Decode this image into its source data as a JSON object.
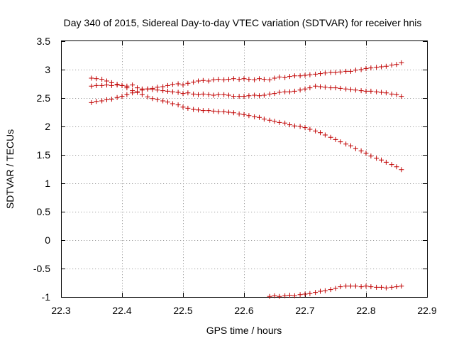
{
  "chart_data": {
    "type": "scatter",
    "title": "Day 340 of 2015, Sidereal Day-to-day VTEC variation (SDTVAR) for receiver hnis",
    "xlabel": "GPS time / hours",
    "ylabel": "SDTVAR / TECUs",
    "xlim": [
      22.3,
      22.9
    ],
    "ylim": [
      -1,
      3.5
    ],
    "xticks": [
      22.3,
      22.4,
      22.5,
      22.6,
      22.7,
      22.8,
      22.9
    ],
    "xtick_labels": [
      "22.3",
      "22.4",
      "22.5",
      "22.6",
      "22.7",
      "22.8",
      "22.9"
    ],
    "yticks": [
      -1,
      -0.5,
      0,
      0.5,
      1,
      1.5,
      2,
      2.5,
      3,
      3.5
    ],
    "ytick_labels": [
      "-1",
      "-0.5",
      "0",
      "0.5",
      "1",
      "1.5",
      "2",
      "2.5",
      "3",
      "3.5"
    ],
    "grid": true,
    "marker": "+",
    "color": "#c00000",
    "series": [
      {
        "name": "series-1",
        "x": [
          22.35,
          22.358,
          22.367,
          22.375,
          22.383,
          22.392,
          22.4,
          22.408,
          22.417,
          22.425,
          22.433,
          22.442,
          22.45,
          22.458,
          22.467,
          22.475,
          22.483,
          22.492,
          22.5,
          22.508,
          22.517,
          22.525,
          22.533,
          22.542,
          22.55,
          22.558,
          22.567,
          22.575,
          22.583,
          22.592,
          22.6,
          22.608,
          22.617,
          22.625,
          22.633,
          22.642,
          22.65,
          22.658,
          22.667,
          22.675,
          22.683,
          22.692,
          22.7,
          22.708,
          22.717,
          22.725,
          22.733,
          22.742,
          22.75,
          22.758,
          22.767,
          22.775,
          22.783,
          22.792,
          22.8,
          22.808,
          22.817,
          22.825,
          22.833,
          22.842,
          22.85,
          22.858
        ],
        "y": [
          2.42,
          2.44,
          2.45,
          2.47,
          2.48,
          2.51,
          2.53,
          2.56,
          2.59,
          2.61,
          2.64,
          2.66,
          2.67,
          2.69,
          2.7,
          2.72,
          2.74,
          2.75,
          2.73,
          2.76,
          2.78,
          2.8,
          2.81,
          2.8,
          2.82,
          2.83,
          2.82,
          2.83,
          2.84,
          2.83,
          2.84,
          2.83,
          2.82,
          2.84,
          2.83,
          2.82,
          2.85,
          2.87,
          2.86,
          2.88,
          2.89,
          2.89,
          2.9,
          2.91,
          2.92,
          2.93,
          2.94,
          2.95,
          2.95,
          2.96,
          2.97,
          2.97,
          2.99,
          3.0,
          3.02,
          3.03,
          3.04,
          3.05,
          3.06,
          3.08,
          3.09,
          3.12
        ]
      },
      {
        "name": "series-2",
        "x": [
          22.35,
          22.358,
          22.367,
          22.375,
          22.383,
          22.392,
          22.4,
          22.408,
          22.417,
          22.425,
          22.433,
          22.442,
          22.45,
          22.458,
          22.467,
          22.475,
          22.483,
          22.492,
          22.5,
          22.508,
          22.517,
          22.525,
          22.533,
          22.542,
          22.55,
          22.558,
          22.567,
          22.575,
          22.583,
          22.592,
          22.6,
          22.608,
          22.617,
          22.625,
          22.633,
          22.642,
          22.65,
          22.658,
          22.667,
          22.675,
          22.683,
          22.692,
          22.7,
          22.708,
          22.717,
          22.725,
          22.733,
          22.742,
          22.75,
          22.758,
          22.767,
          22.775,
          22.783,
          22.792,
          22.8,
          22.808,
          22.817,
          22.825,
          22.833,
          22.842,
          22.85,
          22.858
        ],
        "y": [
          2.71,
          2.72,
          2.72,
          2.73,
          2.72,
          2.73,
          2.72,
          2.71,
          2.73,
          2.68,
          2.66,
          2.66,
          2.65,
          2.64,
          2.63,
          2.62,
          2.61,
          2.6,
          2.58,
          2.59,
          2.57,
          2.56,
          2.57,
          2.56,
          2.55,
          2.56,
          2.56,
          2.55,
          2.53,
          2.53,
          2.53,
          2.54,
          2.55,
          2.54,
          2.55,
          2.57,
          2.58,
          2.6,
          2.61,
          2.61,
          2.62,
          2.64,
          2.66,
          2.68,
          2.71,
          2.7,
          2.69,
          2.68,
          2.68,
          2.67,
          2.66,
          2.65,
          2.64,
          2.63,
          2.62,
          2.62,
          2.61,
          2.6,
          2.59,
          2.57,
          2.56,
          2.53
        ]
      },
      {
        "name": "series-3",
        "x": [
          22.35,
          22.358,
          22.367,
          22.375,
          22.383,
          22.392,
          22.4,
          22.408,
          22.417,
          22.425,
          22.433,
          22.442,
          22.45,
          22.458,
          22.467,
          22.475,
          22.483,
          22.492,
          22.5,
          22.508,
          22.517,
          22.525,
          22.533,
          22.542,
          22.55,
          22.558,
          22.567,
          22.575,
          22.583,
          22.592,
          22.6,
          22.608,
          22.617,
          22.625,
          22.633,
          22.642,
          22.65,
          22.658,
          22.667,
          22.675,
          22.683,
          22.692,
          22.7,
          22.708,
          22.717,
          22.725,
          22.733,
          22.742,
          22.75,
          22.758,
          22.767,
          22.775,
          22.783,
          22.792,
          22.8,
          22.808,
          22.817,
          22.825,
          22.833,
          22.842,
          22.85,
          22.858
        ],
        "y": [
          2.85,
          2.84,
          2.83,
          2.8,
          2.77,
          2.74,
          2.72,
          2.68,
          2.63,
          2.6,
          2.56,
          2.52,
          2.49,
          2.47,
          2.45,
          2.43,
          2.4,
          2.38,
          2.34,
          2.32,
          2.3,
          2.29,
          2.28,
          2.28,
          2.27,
          2.26,
          2.26,
          2.25,
          2.24,
          2.22,
          2.21,
          2.19,
          2.17,
          2.16,
          2.13,
          2.11,
          2.09,
          2.07,
          2.06,
          2.03,
          2.01,
          2.0,
          1.98,
          1.95,
          1.92,
          1.89,
          1.85,
          1.81,
          1.77,
          1.73,
          1.69,
          1.66,
          1.61,
          1.57,
          1.53,
          1.48,
          1.44,
          1.41,
          1.37,
          1.33,
          1.29,
          1.24
        ]
      },
      {
        "name": "series-4",
        "x": [
          22.642,
          22.65,
          22.658,
          22.667,
          22.675,
          22.683,
          22.692,
          22.7,
          22.708,
          22.717,
          22.725,
          22.733,
          22.742,
          22.75,
          22.758,
          22.767,
          22.775,
          22.783,
          22.792,
          22.8,
          22.808,
          22.817,
          22.825,
          22.833,
          22.842,
          22.85,
          22.858
        ],
        "y": [
          -0.99,
          -0.98,
          -0.99,
          -0.98,
          -0.97,
          -0.98,
          -0.96,
          -0.95,
          -0.94,
          -0.92,
          -0.9,
          -0.89,
          -0.87,
          -0.85,
          -0.82,
          -0.81,
          -0.81,
          -0.81,
          -0.82,
          -0.81,
          -0.82,
          -0.83,
          -0.83,
          -0.84,
          -0.83,
          -0.82,
          -0.81
        ]
      }
    ]
  }
}
